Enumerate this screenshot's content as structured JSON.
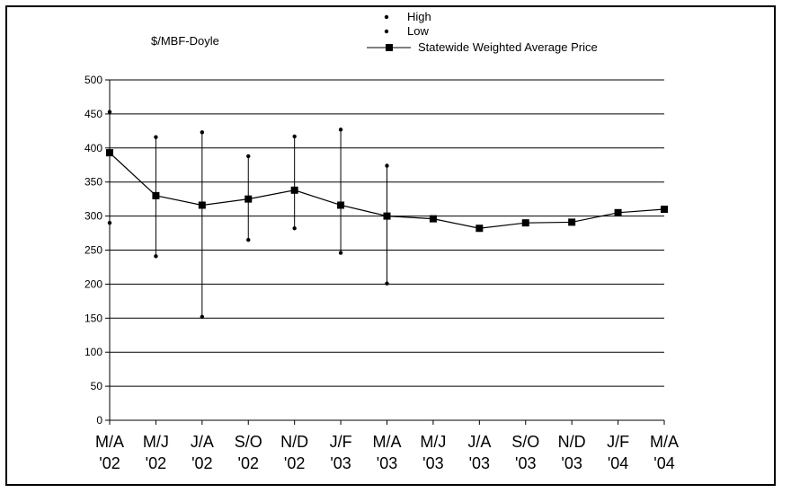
{
  "chart_data": {
    "type": "line",
    "units_label": "$/MBF-Doyle",
    "x_categories": [
      [
        "M/A",
        "'02"
      ],
      [
        "M/J",
        "'02"
      ],
      [
        "J/A",
        "'02"
      ],
      [
        "S/O",
        "'02"
      ],
      [
        "N/D",
        "'02"
      ],
      [
        "J/F",
        "'03"
      ],
      [
        "M/A",
        "'03"
      ],
      [
        "M/J",
        "'03"
      ],
      [
        "J/A",
        "'03"
      ],
      [
        "S/O",
        "'03"
      ],
      [
        "N/D",
        "'03"
      ],
      [
        "J/F",
        "'04"
      ],
      [
        "M/A",
        "'04"
      ]
    ],
    "ylim": [
      0,
      500
    ],
    "yticks": [
      0,
      50,
      100,
      150,
      200,
      250,
      300,
      350,
      400,
      450,
      500
    ],
    "grid": true,
    "legend_position": "top-right",
    "series": [
      {
        "name": "High",
        "marker": "dot",
        "values": [
          453,
          416,
          423,
          388,
          417,
          427,
          374,
          null,
          null,
          null,
          null,
          null,
          null
        ]
      },
      {
        "name": "Low",
        "marker": "dot",
        "values": [
          290,
          241,
          152,
          265,
          282,
          246,
          201,
          null,
          null,
          null,
          null,
          null,
          null
        ]
      },
      {
        "name": "Statewide Weighted Average Price",
        "marker": "square-line",
        "values": [
          393,
          330,
          316,
          325,
          338,
          316,
          300,
          296,
          282,
          290,
          291,
          305,
          310
        ]
      }
    ]
  }
}
